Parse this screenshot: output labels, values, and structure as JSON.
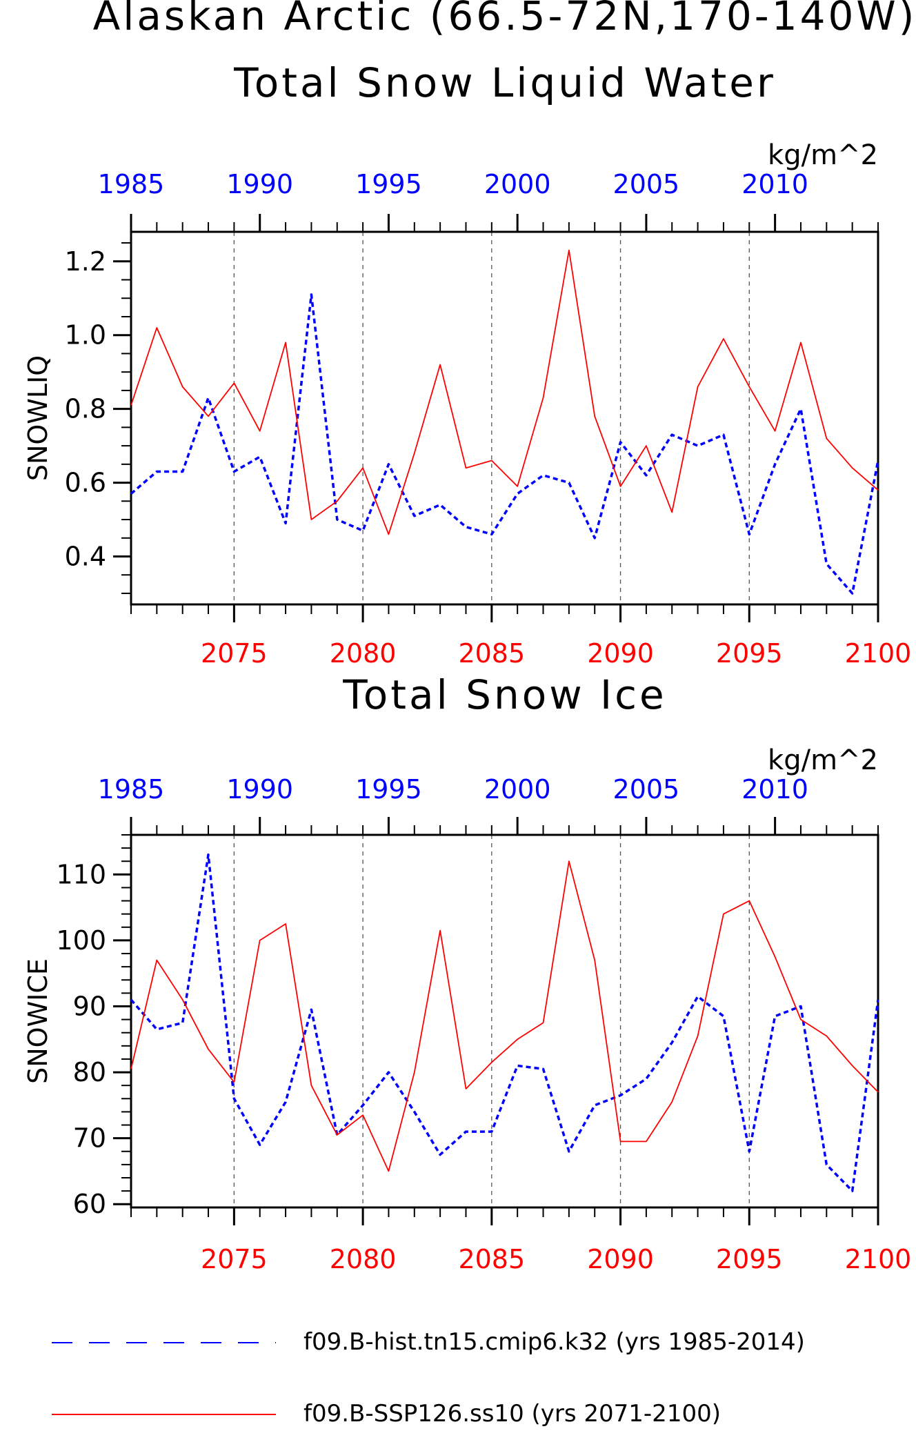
{
  "title_line1": "Alaskan Arctic (66.5-72N,170-140W)",
  "colors": {
    "hist": "#0000ff",
    "ssp": "#ff0000",
    "axis": "#000000",
    "grid": "#555555"
  },
  "legend": [
    {
      "label": "f09.B-hist.tn15.cmip6.k32 (yrs 1985-2014)",
      "color": "#0000ff",
      "style": "dashed"
    },
    {
      "label": "f09.B-SSP126.ss10 (yrs 2071-2100)",
      "color": "#ff0000",
      "style": "solid"
    }
  ],
  "chart_data": [
    {
      "type": "line",
      "title": "Total Snow Liquid Water",
      "units": "kg/m^2",
      "ylabel": "SNOWLIQ",
      "ylim": [
        0.27,
        1.28
      ],
      "yticks": [
        0.4,
        0.6,
        0.8,
        1.0,
        1.2
      ],
      "ytick_labels": [
        "0.4",
        "0.6",
        "0.8",
        "1.0",
        "1.2"
      ],
      "x_bottom": {
        "range": [
          2071,
          2100
        ],
        "ticks": [
          2075,
          2080,
          2085,
          2090,
          2095,
          2100
        ]
      },
      "x_top": {
        "range": [
          1985,
          2014
        ],
        "ticks": [
          1985,
          1990,
          1995,
          2000,
          2005,
          2010
        ]
      },
      "grid": "vertical dashed at bottom major ticks",
      "series": [
        {
          "name": "f09.B-hist.tn15.cmip6.k32 (yrs 1985-2014)",
          "axis": "top",
          "style": "dashed",
          "x": [
            1985,
            1986,
            1987,
            1988,
            1989,
            1990,
            1991,
            1992,
            1993,
            1994,
            1995,
            1996,
            1997,
            1998,
            1999,
            2000,
            2001,
            2002,
            2003,
            2004,
            2005,
            2006,
            2007,
            2008,
            2009,
            2010,
            2011,
            2012,
            2013,
            2014
          ],
          "values": [
            0.57,
            0.63,
            0.63,
            0.83,
            0.63,
            0.67,
            0.49,
            1.11,
            0.5,
            0.47,
            0.65,
            0.51,
            0.54,
            0.48,
            0.46,
            0.57,
            0.62,
            0.6,
            0.45,
            0.71,
            0.62,
            0.73,
            0.7,
            0.73,
            0.46,
            0.65,
            0.8,
            0.38,
            0.3,
            0.66
          ]
        },
        {
          "name": "f09.B-SSP126.ss10 (yrs 2071-2100)",
          "axis": "bottom",
          "style": "solid",
          "x": [
            2071,
            2072,
            2073,
            2074,
            2075,
            2076,
            2077,
            2078,
            2079,
            2080,
            2081,
            2082,
            2083,
            2084,
            2085,
            2086,
            2087,
            2088,
            2089,
            2090,
            2091,
            2092,
            2093,
            2094,
            2095,
            2096,
            2097,
            2098,
            2099,
            2100
          ],
          "values": [
            0.81,
            1.02,
            0.86,
            0.78,
            0.87,
            0.74,
            0.98,
            0.5,
            0.55,
            0.64,
            0.46,
            0.68,
            0.92,
            0.64,
            0.66,
            0.59,
            0.83,
            1.23,
            0.78,
            0.59,
            0.7,
            0.52,
            0.86,
            0.99,
            0.86,
            0.74,
            0.98,
            0.72,
            0.64,
            0.58
          ]
        }
      ]
    },
    {
      "type": "line",
      "title": "Total Snow Ice",
      "units": "kg/m^2",
      "ylabel": "SNOWICE",
      "ylim": [
        59.5,
        116
      ],
      "yticks": [
        60,
        70,
        80,
        90,
        100,
        110
      ],
      "ytick_labels": [
        "60",
        "70",
        "80",
        "90",
        "100",
        "110"
      ],
      "x_bottom": {
        "range": [
          2071,
          2100
        ],
        "ticks": [
          2075,
          2080,
          2085,
          2090,
          2095,
          2100
        ]
      },
      "x_top": {
        "range": [
          1985,
          2014
        ],
        "ticks": [
          1985,
          1990,
          1995,
          2000,
          2005,
          2010
        ]
      },
      "grid": "vertical dashed at bottom major ticks",
      "series": [
        {
          "name": "f09.B-hist.tn15.cmip6.k32 (yrs 1985-2014)",
          "axis": "top",
          "style": "dashed",
          "x": [
            1985,
            1986,
            1987,
            1988,
            1989,
            1990,
            1991,
            1992,
            1993,
            1994,
            1995,
            1996,
            1997,
            1998,
            1999,
            2000,
            2001,
            2002,
            2003,
            2004,
            2005,
            2006,
            2007,
            2008,
            2009,
            2010,
            2011,
            2012,
            2013,
            2014
          ],
          "values": [
            91,
            86.5,
            87.5,
            113,
            76,
            69,
            75.5,
            89.5,
            70.5,
            75,
            80,
            74,
            67.5,
            71,
            71,
            81,
            80.5,
            68,
            75,
            76.5,
            79,
            84.5,
            91.5,
            88.5,
            68,
            88.5,
            90,
            66,
            62,
            91
          ]
        },
        {
          "name": "f09.B-SSP126.ss10 (yrs 2071-2100)",
          "axis": "bottom",
          "style": "solid",
          "x": [
            2071,
            2072,
            2073,
            2074,
            2075,
            2076,
            2077,
            2078,
            2079,
            2080,
            2081,
            2082,
            2083,
            2084,
            2085,
            2086,
            2087,
            2088,
            2089,
            2090,
            2091,
            2092,
            2093,
            2094,
            2095,
            2096,
            2097,
            2098,
            2099,
            2100
          ],
          "values": [
            80.5,
            97,
            91,
            83.5,
            78.5,
            100,
            102.5,
            78,
            70.5,
            73.5,
            65,
            80,
            101.5,
            77.5,
            81.5,
            85,
            87.5,
            112,
            97,
            69.5,
            69.5,
            75.5,
            85.5,
            104,
            106,
            97.5,
            88,
            85.5,
            81,
            77
          ]
        }
      ]
    }
  ]
}
